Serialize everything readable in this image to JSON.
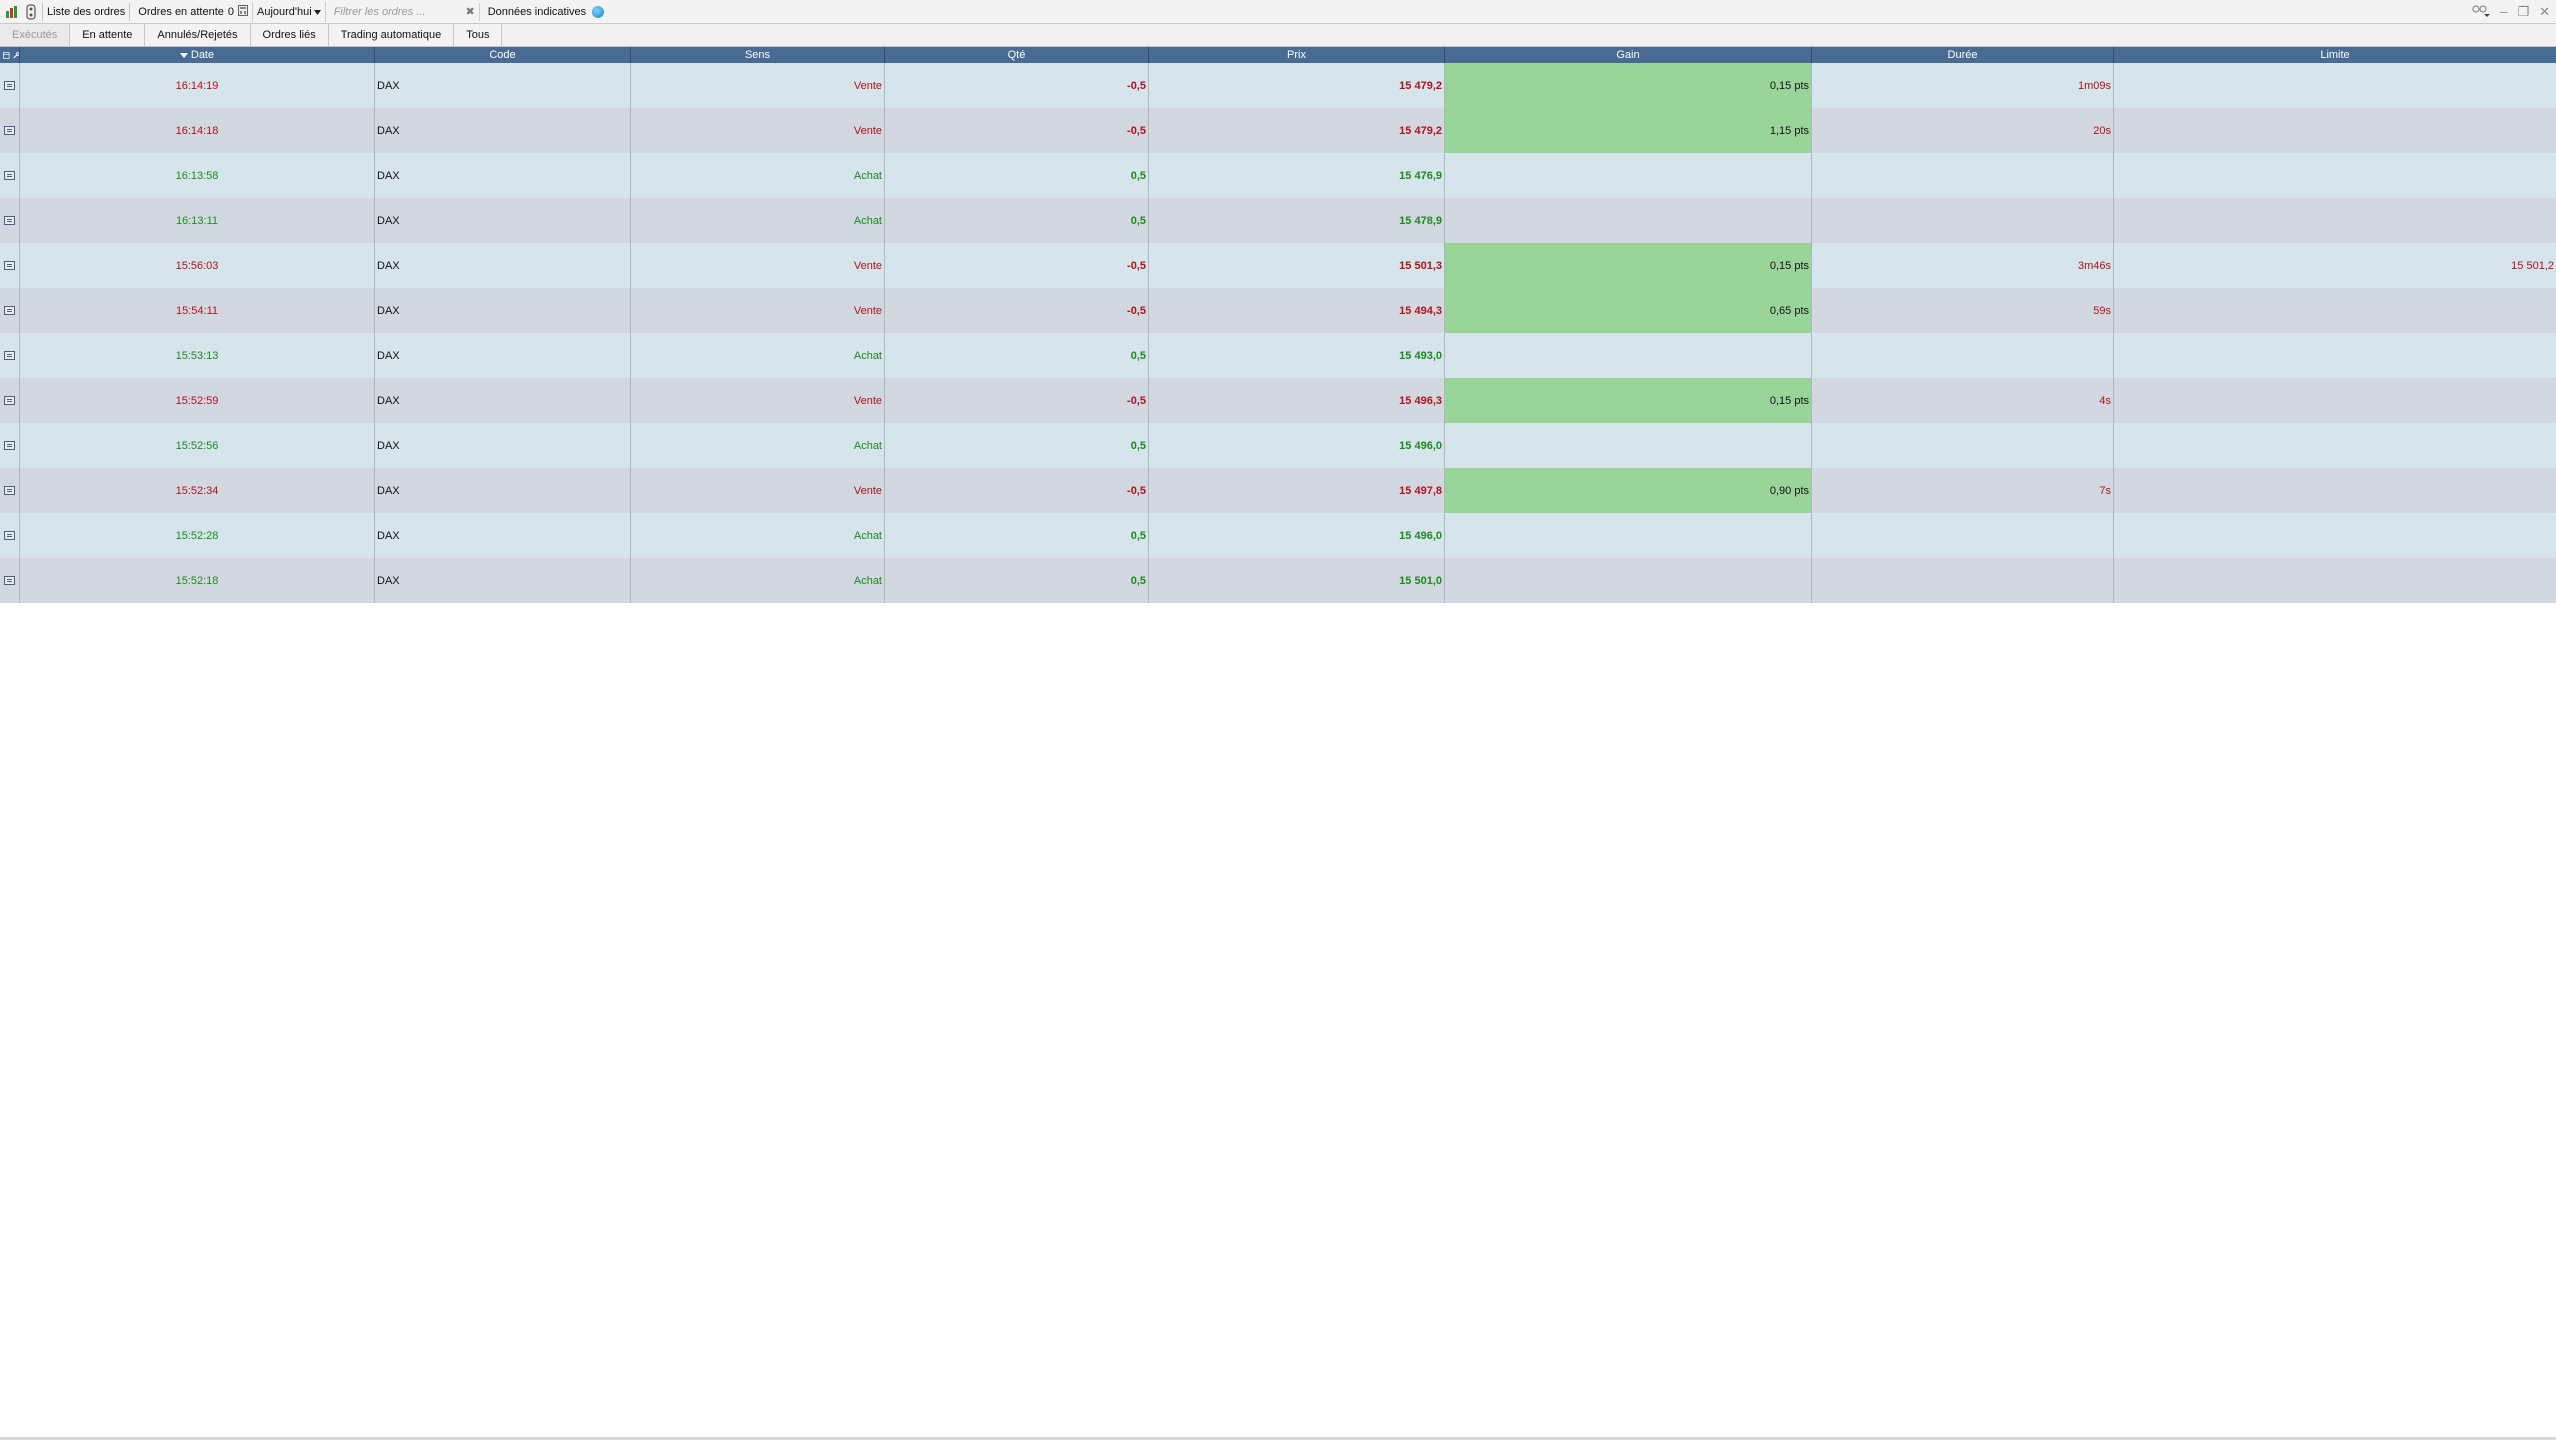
{
  "toolbar": {
    "list_title": "Liste des ordres",
    "pending_label": "Ordres en attente",
    "pending_count": "0",
    "period": "Aujourd'hui",
    "filter_placeholder": "Filtrer les ordres ...",
    "data_label": "Données indicatives"
  },
  "tabs": [
    {
      "label": "Exécutés",
      "disabled": true
    },
    {
      "label": "En attente",
      "disabled": false
    },
    {
      "label": "Annulés/Rejetés",
      "disabled": false
    },
    {
      "label": "Ordres liés",
      "disabled": false
    },
    {
      "label": "Trading automatique",
      "disabled": false
    },
    {
      "label": "Tous",
      "disabled": false
    }
  ],
  "columns": {
    "date": "Date",
    "code": "Code",
    "sens": "Sens",
    "qte": "Qté",
    "prix": "Prix",
    "gain": "Gain",
    "duree": "Durée",
    "limite": "Limite"
  },
  "colors": {
    "header": "#476b93",
    "row_odd": "#d6e4ec",
    "row_even": "#d3d8e0",
    "gain_positive": "#99d598",
    "sell": "#b0121b",
    "buy": "#1d8a1d"
  },
  "orders": [
    {
      "date": "16:14:19",
      "code": "DAX",
      "sens": "Vente",
      "qte": "-0,5",
      "prix": "15 479,2",
      "gain": "0,15 pts",
      "duree": "1m09s",
      "limite": "",
      "side": "sell"
    },
    {
      "date": "16:14:18",
      "code": "DAX",
      "sens": "Vente",
      "qte": "-0,5",
      "prix": "15 479,2",
      "gain": "1,15 pts",
      "duree": "20s",
      "limite": "",
      "side": "sell"
    },
    {
      "date": "16:13:58",
      "code": "DAX",
      "sens": "Achat",
      "qte": "0,5",
      "prix": "15 476,9",
      "gain": "",
      "duree": "",
      "limite": "",
      "side": "buy"
    },
    {
      "date": "16:13:11",
      "code": "DAX",
      "sens": "Achat",
      "qte": "0,5",
      "prix": "15 478,9",
      "gain": "",
      "duree": "",
      "limite": "",
      "side": "buy"
    },
    {
      "date": "15:56:03",
      "code": "DAX",
      "sens": "Vente",
      "qte": "-0,5",
      "prix": "15 501,3",
      "gain": "0,15 pts",
      "duree": "3m46s",
      "limite": "15 501,2",
      "side": "sell"
    },
    {
      "date": "15:54:11",
      "code": "DAX",
      "sens": "Vente",
      "qte": "-0,5",
      "prix": "15 494,3",
      "gain": "0,65 pts",
      "duree": "59s",
      "limite": "",
      "side": "sell"
    },
    {
      "date": "15:53:13",
      "code": "DAX",
      "sens": "Achat",
      "qte": "0,5",
      "prix": "15 493,0",
      "gain": "",
      "duree": "",
      "limite": "",
      "side": "buy"
    },
    {
      "date": "15:52:59",
      "code": "DAX",
      "sens": "Vente",
      "qte": "-0,5",
      "prix": "15 496,3",
      "gain": "0,15 pts",
      "duree": "4s",
      "limite": "",
      "side": "sell"
    },
    {
      "date": "15:52:56",
      "code": "DAX",
      "sens": "Achat",
      "qte": "0,5",
      "prix": "15 496,0",
      "gain": "",
      "duree": "",
      "limite": "",
      "side": "buy"
    },
    {
      "date": "15:52:34",
      "code": "DAX",
      "sens": "Vente",
      "qte": "-0,5",
      "prix": "15 497,8",
      "gain": "0,90 pts",
      "duree": "7s",
      "limite": "",
      "side": "sell"
    },
    {
      "date": "15:52:28",
      "code": "DAX",
      "sens": "Achat",
      "qte": "0,5",
      "prix": "15 496,0",
      "gain": "",
      "duree": "",
      "limite": "",
      "side": "buy"
    },
    {
      "date": "15:52:18",
      "code": "DAX",
      "sens": "Achat",
      "qte": "0,5",
      "prix": "15 501,0",
      "gain": "",
      "duree": "",
      "limite": "",
      "side": "buy"
    }
  ]
}
